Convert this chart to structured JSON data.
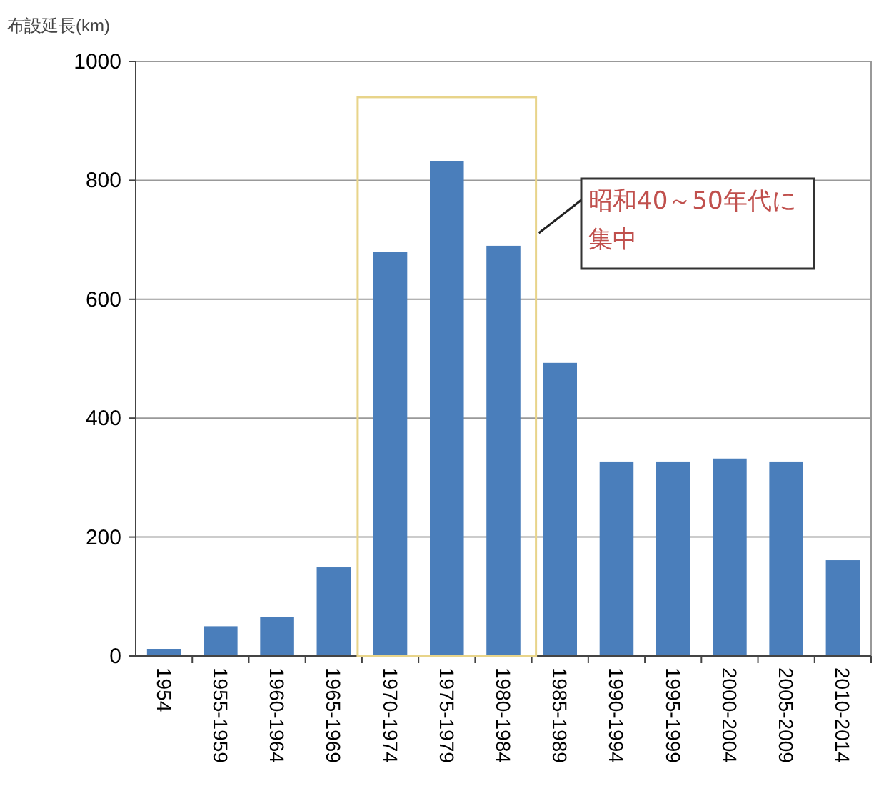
{
  "chart_data": {
    "type": "bar",
    "ylabel": "布設延長(km)",
    "categories": [
      "1954",
      "1955-1959",
      "1960-1964",
      "1965-1969",
      "1970-1974",
      "1975-1979",
      "1980-1984",
      "1985-1989",
      "1990-1994",
      "1995-1999",
      "2000-2004",
      "2005-2009",
      "2010-2014"
    ],
    "values": [
      12,
      50,
      65,
      149,
      680,
      832,
      690,
      493,
      327,
      327,
      332,
      327,
      161
    ],
    "color": "#4a7ebb",
    "ylim": [
      0,
      1000
    ],
    "yticks": [
      0,
      200,
      400,
      600,
      800,
      1000
    ],
    "grid": "y",
    "annotations": [
      "昭和40～50年代に集中"
    ]
  }
}
